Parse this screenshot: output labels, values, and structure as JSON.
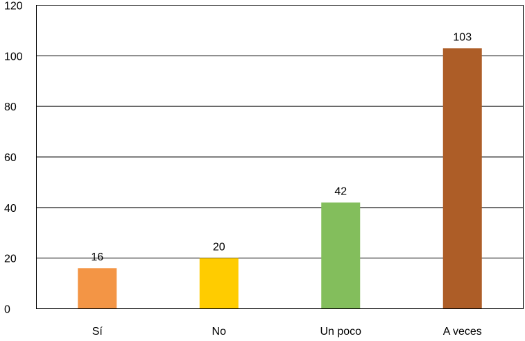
{
  "chart_data": {
    "type": "bar",
    "title": "",
    "xlabel": "",
    "ylabel": "",
    "categories": [
      "Sí",
      "No",
      "Un poco",
      "A veces"
    ],
    "values": [
      16,
      20,
      42,
      103
    ],
    "value_labels": [
      "16",
      "20",
      "42",
      "103"
    ],
    "colors": [
      "#F39545",
      "#FFCC00",
      "#83BE5C",
      "#AD5D27"
    ],
    "ylim": [
      0,
      120
    ],
    "yticks": [
      0,
      20,
      40,
      60,
      80,
      100,
      120
    ],
    "ytick_labels": [
      "0",
      "20",
      "40",
      "60",
      "80",
      "100",
      "120"
    ],
    "grid": true,
    "legend": "none"
  }
}
